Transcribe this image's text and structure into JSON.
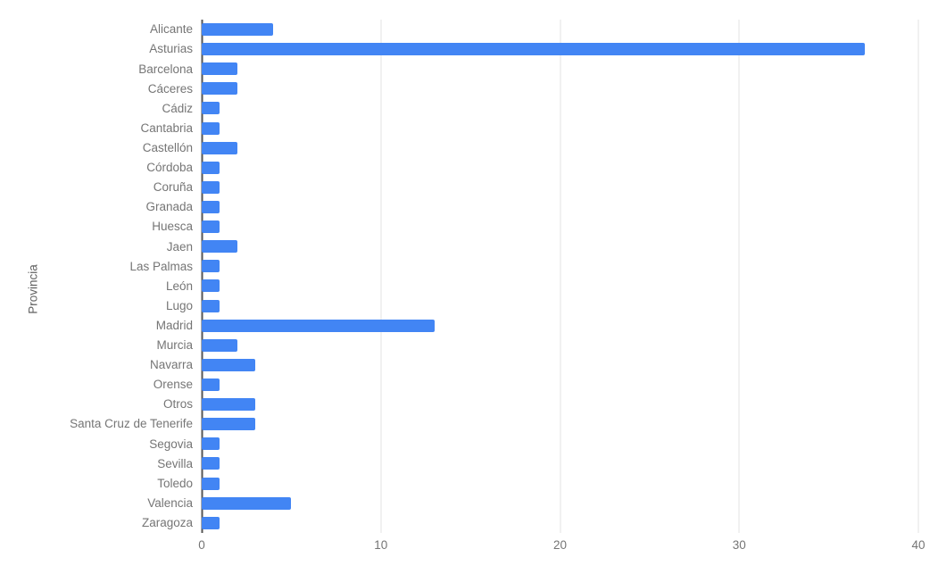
{
  "colors": {
    "bar": "#4285f4",
    "gridline": "#e3e3e3",
    "axis_line": "#555555",
    "label_text": "#757575",
    "axis_title_text": "#616161",
    "background": "#ffffff"
  },
  "chart_data": {
    "type": "bar",
    "orientation": "horizontal",
    "title": "",
    "xlabel": "",
    "ylabel": "Provincia",
    "xlim": [
      0,
      40
    ],
    "x_ticks": [
      0,
      10,
      20,
      30,
      40
    ],
    "grid": true,
    "legend_position": "none",
    "categories": [
      "Alicante",
      "Asturias",
      "Barcelona",
      "Cáceres",
      "Cádiz",
      "Cantabria",
      "Castellón",
      "Córdoba",
      "Coruña",
      "Granada",
      "Huesca",
      "Jaen",
      "Las Palmas",
      "León",
      "Lugo",
      "Madrid",
      "Murcia",
      "Navarra",
      "Orense",
      "Otros",
      "Santa Cruz de Tenerife",
      "Segovia",
      "Sevilla",
      "Toledo",
      "Valencia",
      "Zaragoza"
    ],
    "values": [
      4,
      37,
      2,
      2,
      1,
      1,
      2,
      1,
      1,
      1,
      1,
      2,
      1,
      1,
      1,
      13,
      2,
      3,
      1,
      3,
      3,
      1,
      1,
      1,
      5,
      1
    ]
  }
}
